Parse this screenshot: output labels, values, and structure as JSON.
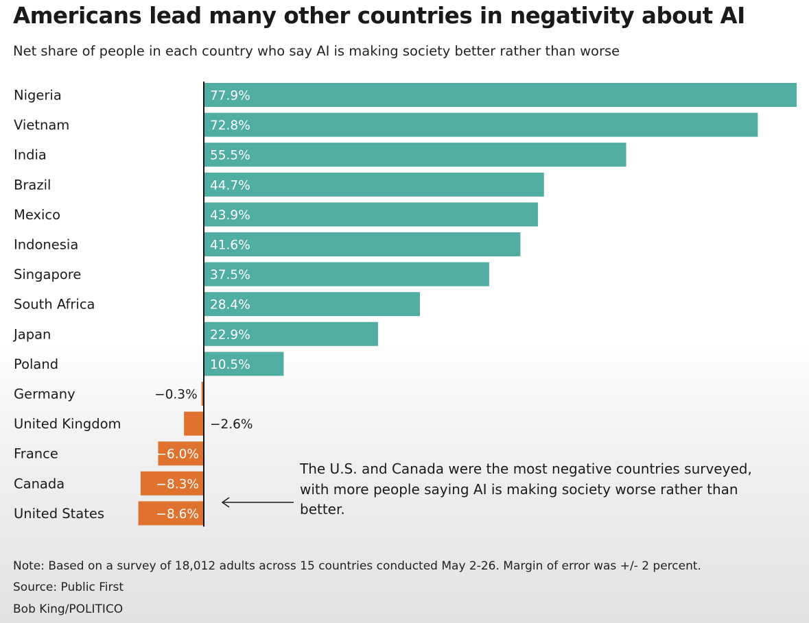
{
  "title": "Americans lead many other countries in negativity about AI",
  "subtitle": "Net share of people in each country who say AI is making society better rather than worse",
  "annotation": "The U.S. and Canada were the most negative countries surveyed, with more people saying AI is making society worse rather than better.",
  "note": "Note: Based on a survey of 18,012 adults across 15 countries conducted May 2-26. Margin of error was +/- 2 percent.",
  "source": "Source: Public First",
  "credit": "Bob King/POLITICO",
  "colors": {
    "positive": "#4fada2",
    "negative": "#e0722f",
    "axis": "#111111",
    "text": "#1a1a1a"
  },
  "chart_data": {
    "type": "bar",
    "orientation": "horizontal",
    "title": "Americans lead many other countries in negativity about AI",
    "subtitle": "Net share of people in each country who say AI is making society better rather than worse",
    "categories": [
      "Nigeria",
      "Vietnam",
      "India",
      "Brazil",
      "Mexico",
      "Indonesia",
      "Singapore",
      "South Africa",
      "Japan",
      "Poland",
      "Germany",
      "United Kingdom",
      "France",
      "Canada",
      "United States"
    ],
    "values": [
      77.9,
      72.8,
      55.5,
      44.7,
      43.9,
      41.6,
      37.5,
      28.4,
      22.9,
      10.5,
      -0.3,
      -2.6,
      -6.0,
      -8.3,
      -8.6
    ],
    "labels": [
      "77.9%",
      "72.8%",
      "55.5%",
      "44.7%",
      "43.9%",
      "41.6%",
      "37.5%",
      "28.4%",
      "22.9%",
      "10.5%",
      "−0.3%",
      "−2.6%",
      "−6.0%",
      "−8.3%",
      "−8.6%"
    ],
    "unit": "%",
    "xlim": [
      -8.6,
      77.9
    ],
    "grid": false,
    "legend": "none"
  }
}
